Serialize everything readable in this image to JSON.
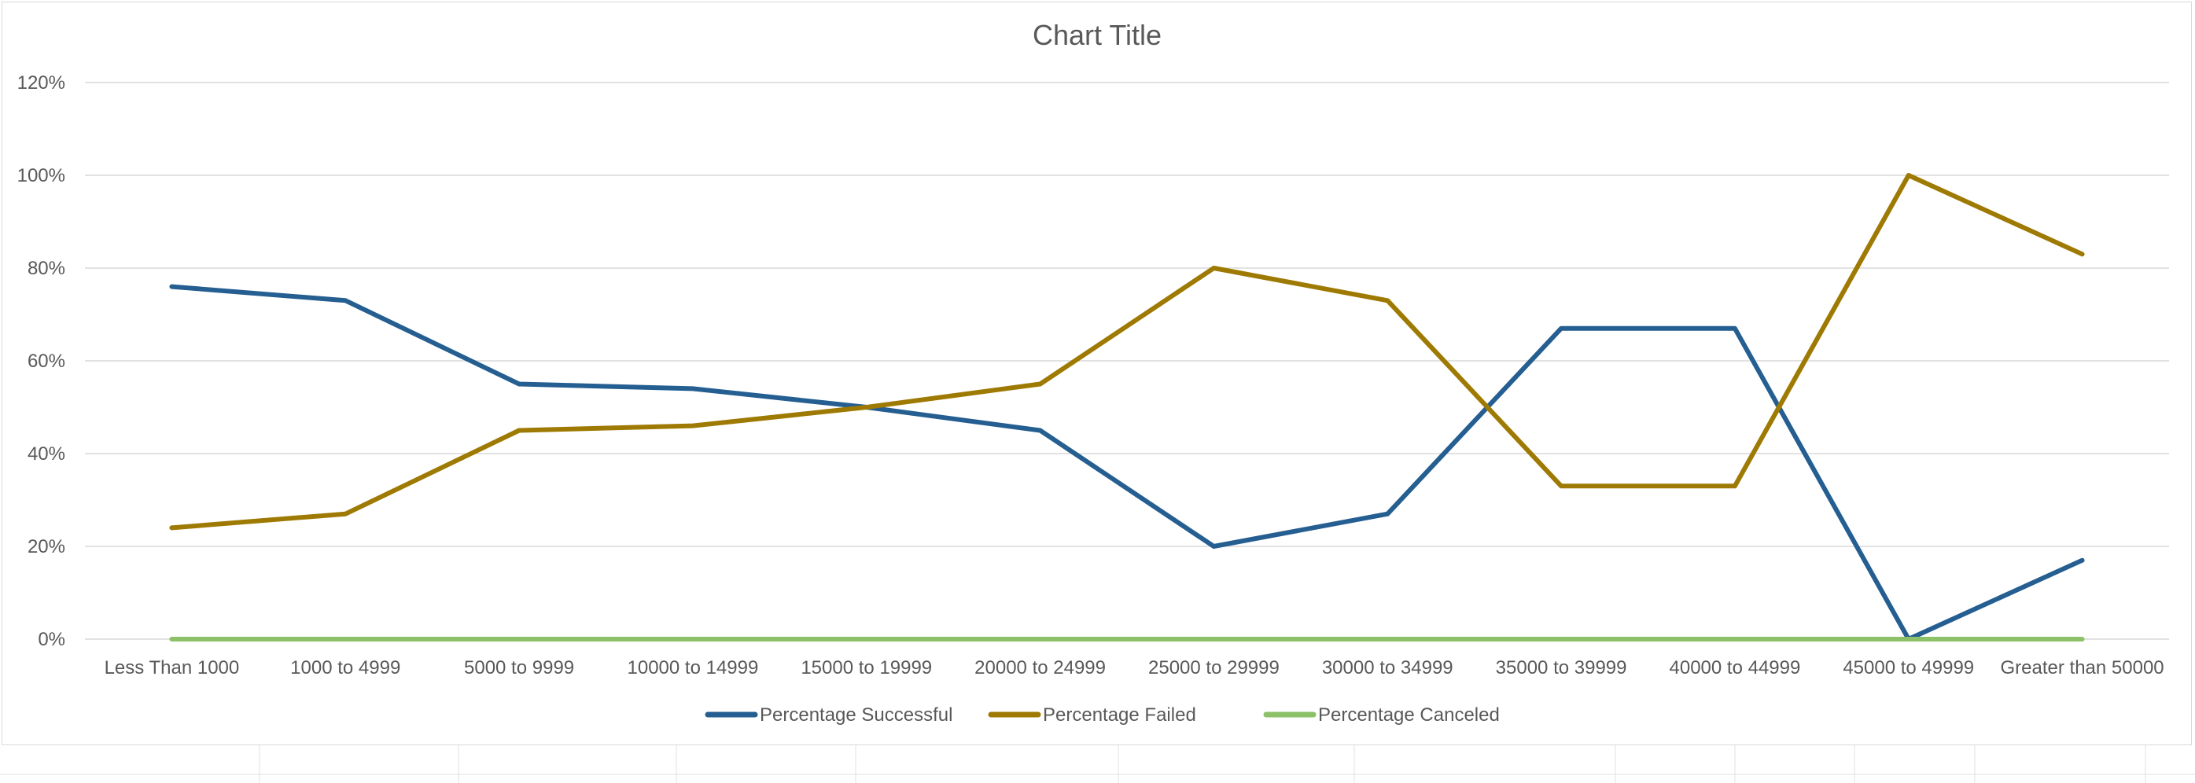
{
  "chart_data": {
    "type": "line",
    "title": "Chart Title",
    "xlabel": "",
    "ylabel": "",
    "ylim": [
      0,
      1.2
    ],
    "yticks": [
      0,
      0.2,
      0.4,
      0.6,
      0.8,
      1.0,
      1.2
    ],
    "ytick_labels": [
      "0%",
      "20%",
      "40%",
      "60%",
      "80%",
      "100%",
      "120%"
    ],
    "grid": true,
    "legend_position": "bottom",
    "categories": [
      "Less Than 1000",
      "1000 to 4999",
      "5000 to 9999",
      "10000 to 14999",
      "15000 to 19999",
      "20000 to 24999",
      "25000 to 29999",
      "30000 to 34999",
      "35000 to 39999",
      "40000 to 44999",
      "45000 to 49999",
      "Greater than 50000"
    ],
    "series": [
      {
        "name": "Percentage Successful",
        "color": "#255e91",
        "values": [
          0.76,
          0.73,
          0.55,
          0.54,
          0.5,
          0.45,
          0.2,
          0.27,
          0.67,
          0.67,
          0.0,
          0.17
        ]
      },
      {
        "name": "Percentage Failed",
        "color": "#9e7a03",
        "values": [
          0.24,
          0.27,
          0.45,
          0.46,
          0.5,
          0.55,
          0.8,
          0.73,
          0.33,
          0.33,
          1.0,
          0.83
        ]
      },
      {
        "name": "Percentage Canceled",
        "color": "#8cc168",
        "values": [
          0,
          0,
          0,
          0,
          0,
          0,
          0,
          0,
          0,
          0,
          0,
          0
        ]
      }
    ]
  }
}
